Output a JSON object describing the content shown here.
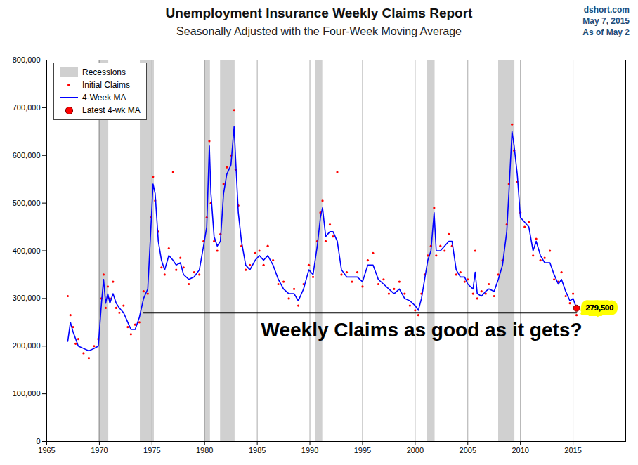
{
  "chart_data": {
    "type": "line",
    "title": "Unemployment Insurance Weekly Claims Report",
    "subtitle": "Seasonally Adjusted with the Four-Week Moving Average",
    "source": "dshort.com",
    "date": "May 7, 2015",
    "as_of": "As of May 2",
    "annotation": "Weekly Claims as good as it gets?",
    "legend": "top-left",
    "grid": true,
    "xlim": [
      1965,
      2020
    ],
    "xticks": [
      1965,
      1970,
      1975,
      1980,
      1985,
      1990,
      1995,
      2000,
      2005,
      2010,
      2015
    ],
    "ylim": [
      0,
      800000
    ],
    "yticks": [
      0,
      {
        "value": 100000,
        "label": "100,000"
      },
      {
        "value": 200000,
        "label": "200,000"
      },
      {
        "value": 300000,
        "label": "300,000"
      },
      {
        "value": 400000,
        "label": "400,000"
      },
      {
        "value": 500000,
        "label": "500,000"
      },
      {
        "value": 600000,
        "label": "600,000"
      },
      {
        "value": 700000,
        "label": "700,000"
      },
      {
        "value": 800000,
        "label": "800,000"
      }
    ],
    "recessions": {
      "label": "Recessions",
      "color": "#d0d0d0",
      "periods": [
        {
          "start": 1969.92,
          "end": 1970.88
        },
        {
          "start": 1973.88,
          "end": 1975.21
        },
        {
          "start": 1980.0,
          "end": 1980.54
        },
        {
          "start": 1981.5,
          "end": 1982.88
        },
        {
          "start": 1990.5,
          "end": 1991.21
        },
        {
          "start": 2001.17,
          "end": 2001.88
        },
        {
          "start": 2007.92,
          "end": 2009.46
        }
      ]
    },
    "x": [
      1967.0,
      1967.25,
      1967.5,
      1967.75,
      1968.0,
      1968.5,
      1969.0,
      1969.5,
      1969.9,
      1970.2,
      1970.4,
      1970.6,
      1970.8,
      1971.0,
      1971.3,
      1971.6,
      1971.9,
      1972.3,
      1972.7,
      1973.0,
      1973.4,
      1973.8,
      1974.2,
      1974.6,
      1974.9,
      1975.1,
      1975.3,
      1975.6,
      1975.9,
      1976.2,
      1976.6,
      1977.0,
      1977.3,
      1977.7,
      1978.0,
      1978.5,
      1979.0,
      1979.5,
      1979.9,
      1980.2,
      1980.45,
      1980.6,
      1980.9,
      1981.2,
      1981.5,
      1981.8,
      1982.1,
      1982.5,
      1982.8,
      1982.95,
      1983.2,
      1983.5,
      1983.9,
      1984.3,
      1984.8,
      1985.2,
      1985.6,
      1986.0,
      1986.5,
      1987.0,
      1987.5,
      1988.0,
      1988.5,
      1988.9,
      1989.4,
      1989.9,
      1990.3,
      1990.7,
      1991.0,
      1991.2,
      1991.5,
      1991.9,
      1992.2,
      1992.6,
      1993.0,
      1993.5,
      1994.0,
      1994.5,
      1995.0,
      1995.5,
      1996.0,
      1996.5,
      1997.0,
      1997.5,
      1998.0,
      1998.5,
      1999.0,
      1999.5,
      2000.0,
      2000.3,
      2000.6,
      2000.9,
      2001.2,
      2001.5,
      2001.8,
      2002.0,
      2002.4,
      2002.8,
      2003.2,
      2003.5,
      2003.9,
      2004.3,
      2004.7,
      2005.0,
      2005.5,
      2005.7,
      2005.9,
      2006.3,
      2006.7,
      2007.0,
      2007.5,
      2007.9,
      2008.3,
      2008.7,
      2008.9,
      2009.2,
      2009.4,
      2009.7,
      2010.0,
      2010.4,
      2010.8,
      2011.2,
      2011.5,
      2011.9,
      2012.3,
      2012.8,
      2013.2,
      2013.6,
      2013.9,
      2014.3,
      2014.7,
      2015.0,
      2015.33
    ],
    "series": [
      {
        "name": "Initial Claims",
        "type": "scatter",
        "marker": "dot",
        "color": "#ff0000",
        "values": [
          305000,
          265000,
          240000,
          205000,
          215000,
          185000,
          175000,
          200000,
          215000,
          300000,
          350000,
          280000,
          325000,
          300000,
          335000,
          280000,
          270000,
          285000,
          240000,
          225000,
          245000,
          250000,
          315000,
          310000,
          470000,
          555000,
          505000,
          440000,
          365000,
          350000,
          405000,
          565000,
          360000,
          385000,
          365000,
          330000,
          355000,
          350000,
          420000,
          470000,
          630000,
          500000,
          420000,
          400000,
          435000,
          540000,
          575000,
          600000,
          695000,
          570000,
          495000,
          410000,
          360000,
          370000,
          395000,
          400000,
          370000,
          410000,
          380000,
          330000,
          335000,
          300000,
          320000,
          285000,
          330000,
          370000,
          345000,
          420000,
          480000,
          505000,
          420000,
          455000,
          430000,
          565000,
          350000,
          355000,
          335000,
          355000,
          325000,
          380000,
          395000,
          330000,
          340000,
          310000,
          320000,
          335000,
          310000,
          285000,
          275000,
          265000,
          310000,
          350000,
          390000,
          410000,
          490000,
          390000,
          410000,
          400000,
          435000,
          410000,
          350000,
          355000,
          335000,
          340000,
          310000,
          400000,
          300000,
          315000,
          310000,
          330000,
          305000,
          350000,
          380000,
          455000,
          540000,
          665000,
          610000,
          545000,
          480000,
          450000,
          460000,
          390000,
          425000,
          380000,
          385000,
          400000,
          340000,
          335000,
          355000,
          305000,
          290000,
          310000,
          265000
        ]
      },
      {
        "name": "4-Week MA",
        "type": "line",
        "line_style": "solid",
        "color": "#0000ff",
        "values": [
          210000,
          250000,
          230000,
          215000,
          200000,
          195000,
          190000,
          195000,
          200000,
          290000,
          340000,
          290000,
          310000,
          290000,
          310000,
          290000,
          280000,
          270000,
          250000,
          235000,
          235000,
          260000,
          300000,
          320000,
          450000,
          540000,
          520000,
          420000,
          380000,
          360000,
          390000,
          380000,
          370000,
          375000,
          350000,
          340000,
          345000,
          360000,
          410000,
          450000,
          620000,
          520000,
          430000,
          410000,
          420000,
          520000,
          560000,
          580000,
          660000,
          590000,
          480000,
          420000,
          370000,
          360000,
          380000,
          390000,
          380000,
          390000,
          370000,
          340000,
          320000,
          310000,
          310000,
          295000,
          320000,
          360000,
          350000,
          410000,
          470000,
          490000,
          430000,
          440000,
          440000,
          420000,
          360000,
          345000,
          345000,
          345000,
          335000,
          370000,
          370000,
          340000,
          330000,
          320000,
          310000,
          320000,
          300000,
          295000,
          285000,
          275000,
          300000,
          340000,
          380000,
          400000,
          480000,
          400000,
          400000,
          410000,
          420000,
          420000,
          360000,
          345000,
          345000,
          330000,
          320000,
          355000,
          310000,
          305000,
          315000,
          320000,
          315000,
          340000,
          370000,
          440000,
          520000,
          650000,
          620000,
          560000,
          470000,
          460000,
          450000,
          400000,
          420000,
          390000,
          375000,
          375000,
          350000,
          330000,
          340000,
          315000,
          295000,
          300000,
          279500
        ]
      }
    ],
    "latest": {
      "name": "Latest 4-wk MA",
      "x": 2015.33,
      "value": 279500,
      "label": "279,500",
      "color": "#ff0000"
    },
    "reference_line": {
      "value": 270000,
      "x": [
        1974.2,
        2015.33
      ],
      "color": "#000000"
    }
  }
}
